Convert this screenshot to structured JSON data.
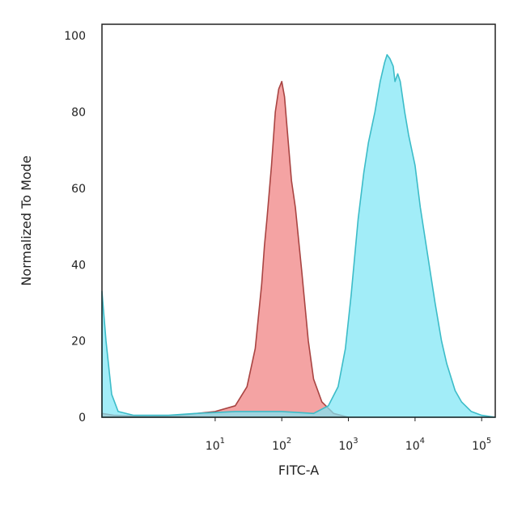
{
  "chart_data": {
    "type": "area",
    "title": "",
    "xlabel": "FITC-A",
    "ylabel": "Normalized To Mode",
    "x_scale": "log",
    "xlim": [
      0.2,
      160000
    ],
    "ylim": [
      0,
      103
    ],
    "grid": false,
    "legend": "none",
    "x_ticks": [
      {
        "value": 10,
        "base": "10",
        "exp": "1"
      },
      {
        "value": 100,
        "base": "10",
        "exp": "2"
      },
      {
        "value": 1000,
        "base": "10",
        "exp": "3"
      },
      {
        "value": 10000,
        "base": "10",
        "exp": "4"
      },
      {
        "value": 100000,
        "base": "10",
        "exp": "5"
      }
    ],
    "y_ticks": [
      "0",
      "20",
      "40",
      "60",
      "80",
      "100"
    ],
    "series": [
      {
        "color": "#f08080",
        "stroke": "#a94442",
        "points": [
          [
            0.2,
            1
          ],
          [
            0.3,
            0.5
          ],
          [
            1,
            0.2
          ],
          [
            3,
            0.5
          ],
          [
            10,
            1.5
          ],
          [
            20,
            3
          ],
          [
            30,
            8
          ],
          [
            40,
            18
          ],
          [
            50,
            35
          ],
          [
            55,
            45
          ],
          [
            60,
            52
          ],
          [
            70,
            66
          ],
          [
            80,
            80
          ],
          [
            90,
            86
          ],
          [
            100,
            88
          ],
          [
            110,
            84
          ],
          [
            120,
            76
          ],
          [
            140,
            62
          ],
          [
            160,
            55
          ],
          [
            200,
            38
          ],
          [
            250,
            20
          ],
          [
            300,
            10
          ],
          [
            400,
            4
          ],
          [
            600,
            1
          ],
          [
            1000,
            0
          ]
        ]
      },
      {
        "color": "#7ee6f5",
        "stroke": "#3cbcc8",
        "points": [
          [
            0.2,
            33
          ],
          [
            0.23,
            20
          ],
          [
            0.28,
            6
          ],
          [
            0.35,
            1.5
          ],
          [
            0.6,
            0.5
          ],
          [
            2,
            0.5
          ],
          [
            5,
            1
          ],
          [
            20,
            1.5
          ],
          [
            100,
            1.5
          ],
          [
            300,
            1
          ],
          [
            500,
            3
          ],
          [
            700,
            8
          ],
          [
            900,
            18
          ],
          [
            1100,
            32
          ],
          [
            1400,
            52
          ],
          [
            1700,
            64
          ],
          [
            2000,
            72
          ],
          [
            2500,
            80
          ],
          [
            3000,
            88
          ],
          [
            3500,
            93
          ],
          [
            3800,
            95
          ],
          [
            4200,
            94
          ],
          [
            4700,
            92
          ],
          [
            5000,
            88
          ],
          [
            5500,
            90
          ],
          [
            6000,
            88
          ],
          [
            7000,
            80
          ],
          [
            8000,
            74
          ],
          [
            10000,
            66
          ],
          [
            12000,
            55
          ],
          [
            15000,
            44
          ],
          [
            20000,
            30
          ],
          [
            25000,
            20
          ],
          [
            30000,
            14
          ],
          [
            40000,
            7
          ],
          [
            50000,
            4
          ],
          [
            70000,
            1.5
          ],
          [
            100000,
            0.5
          ],
          [
            160000,
            0
          ]
        ]
      }
    ]
  }
}
